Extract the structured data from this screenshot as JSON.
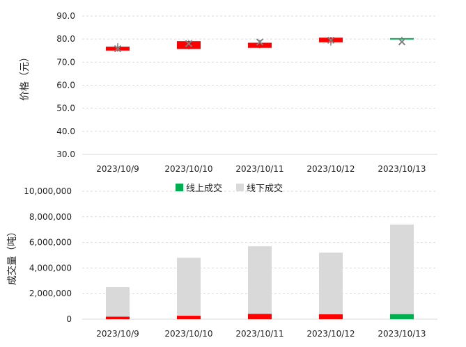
{
  "chart_data": [
    {
      "type": "candlestick",
      "ylabel": "价格（元）",
      "ylim": [
        30,
        90
      ],
      "yticks": [
        "30.0",
        "40.0",
        "50.0",
        "60.0",
        "70.0",
        "80.0",
        "90.0"
      ],
      "categories": [
        "2023/10/9",
        "2023/10/10",
        "2023/10/11",
        "2023/10/12",
        "2023/10/13"
      ],
      "candles": [
        {
          "open": 76.7,
          "close": 75.0,
          "high": 78.2,
          "low": 74.5,
          "avg": 75.8,
          "color": "#ff0000"
        },
        {
          "open": 79.1,
          "close": 75.7,
          "high": 79.5,
          "low": 75.5,
          "avg": 78.0,
          "color": "#ff0000"
        },
        {
          "open": 78.4,
          "close": 76.2,
          "high": 79.5,
          "low": 76.0,
          "avg": 78.7,
          "color": "#ff0000"
        },
        {
          "open": 80.6,
          "close": 78.6,
          "high": 81.0,
          "low": 77.2,
          "avg": 79.5,
          "color": "#ff0000"
        },
        {
          "open": 80.1,
          "close": 80.4,
          "high": 81.0,
          "low": 80.0,
          "avg": 78.8,
          "color": "#00b050"
        }
      ]
    },
    {
      "type": "bar",
      "stacked": true,
      "ylabel": "成交量（吨）",
      "ylim": [
        0,
        10000000
      ],
      "yticks": [
        "0",
        "2,000,000",
        "4,000,000",
        "6,000,000",
        "8,000,000",
        "10,000,000"
      ],
      "categories": [
        "2023/10/9",
        "2023/10/10",
        "2023/10/11",
        "2023/10/12",
        "2023/10/13"
      ],
      "legend_position": "top",
      "legend": [
        {
          "name": "线上成交",
          "color": "#00b050"
        },
        {
          "name": "线下成交",
          "color": "#d9d9d9"
        }
      ],
      "series": [
        {
          "name": "线上成交",
          "values": [
            200000,
            270000,
            420000,
            380000,
            400000
          ],
          "colors": [
            "#ff0000",
            "#ff0000",
            "#ff0000",
            "#ff0000",
            "#00b050"
          ]
        },
        {
          "name": "线下成交",
          "values": [
            2300000,
            4530000,
            5280000,
            4820000,
            7000000
          ],
          "color": "#d9d9d9"
        }
      ]
    }
  ]
}
